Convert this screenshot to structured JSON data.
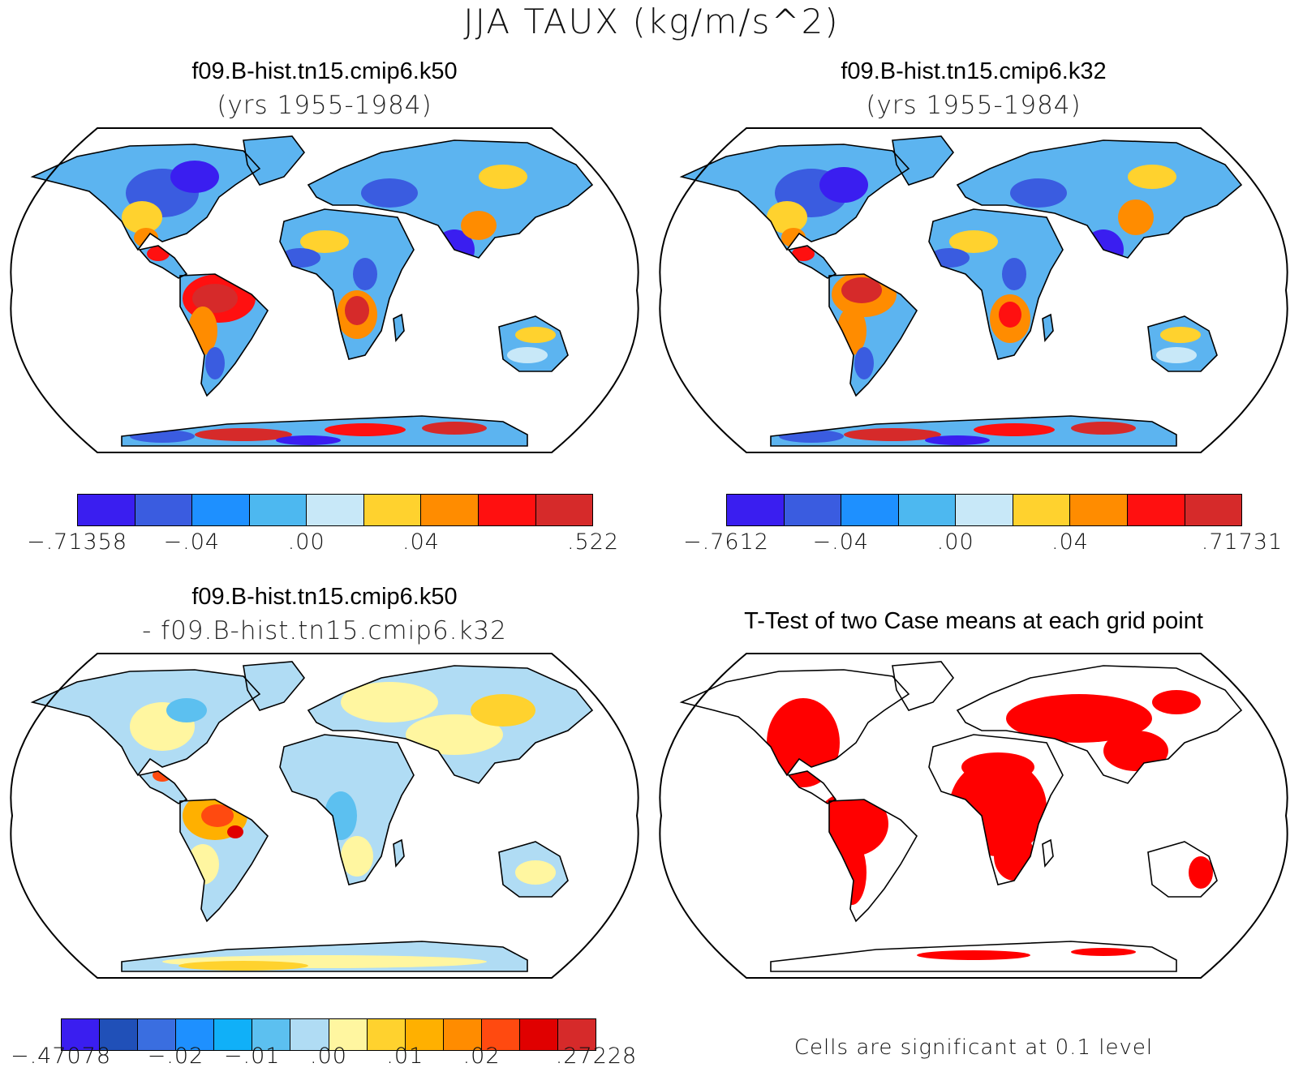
{
  "main_title": "JJA TAUX (kg/m/s^2)",
  "panels": [
    {
      "title": "f09.B-hist.tn15.cmip6.k50",
      "subtitle": "(yrs 1955-1984)"
    },
    {
      "title": "f09.B-hist.tn15.cmip6.k32",
      "subtitle": "(yrs 1955-1984)"
    },
    {
      "title": "f09.B-hist.tn15.cmip6.k50",
      "subtitle": "- f09.B-hist.tn15.cmip6.k32"
    },
    {
      "title": "T-Test of two Case means at each grid point",
      "subtitle": ""
    }
  ],
  "colorbars": [
    {
      "colors": [
        "#3a1ef0",
        "#3a5ce0",
        "#1e90ff",
        "#4db8f0",
        "#c8e8f8",
        "#ffd22e",
        "#ff8c00",
        "#ff1010",
        "#d62a2a"
      ],
      "labels": [
        "-.71358",
        "-.04",
        ".00",
        ".04",
        ".522"
      ]
    },
    {
      "colors": [
        "#3a1ef0",
        "#3a5ce0",
        "#1e90ff",
        "#4db8f0",
        "#c8e8f8",
        "#ffd22e",
        "#ff8c00",
        "#ff1010",
        "#d62a2a"
      ],
      "labels": [
        "-.7612",
        "-.04",
        ".00",
        ".04",
        ".71731"
      ]
    },
    {
      "colors": [
        "#3a1ef0",
        "#2050b8",
        "#3a6ee0",
        "#1e90ff",
        "#10b0f8",
        "#5cc0f0",
        "#b0dcf4",
        "#fff6a0",
        "#ffd22e",
        "#ffb000",
        "#ff8c00",
        "#ff4a10",
        "#e00000",
        "#d62a2a"
      ],
      "labels": [
        "-.47078",
        "-.02",
        "-.01",
        ".00",
        ".01",
        ".02",
        ".27228"
      ]
    }
  ],
  "significance_note": "Cells are significant at 0.1 level",
  "significance_color": "#ff0000"
}
